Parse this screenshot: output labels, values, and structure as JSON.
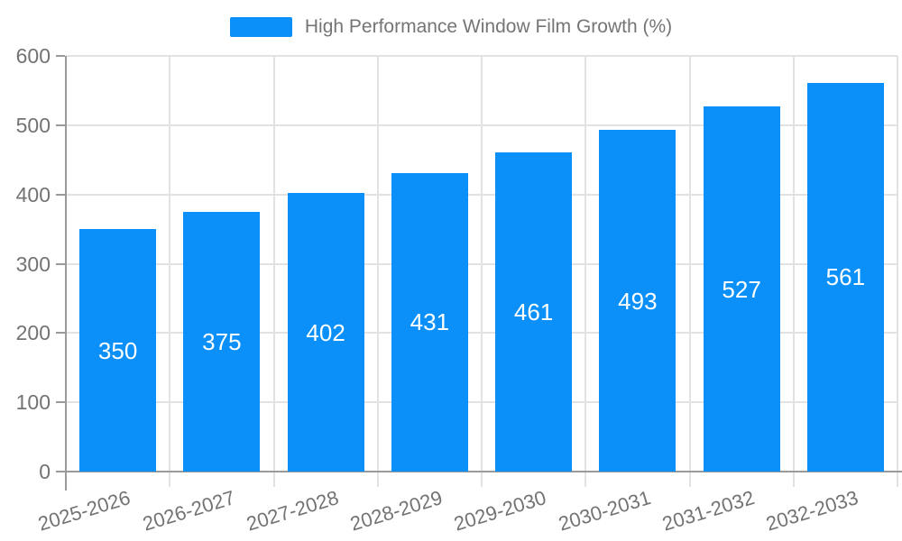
{
  "chart_data": {
    "type": "bar",
    "title": "High Performance Window Film Growth (%)",
    "categories": [
      "2025-2026",
      "2026-2027",
      "2027-2028",
      "2028-2029",
      "2029-2030",
      "2030-2031",
      "2031-2032",
      "2032-2033"
    ],
    "series": [
      {
        "name": "High Performance Window Film Growth (%)",
        "values": [
          350,
          375,
          402,
          431,
          461,
          493,
          527,
          561
        ]
      }
    ],
    "xlabel": "",
    "ylabel": "",
    "ylim": [
      0,
      600
    ],
    "yticks": [
      0,
      100,
      200,
      300,
      400,
      500,
      600
    ],
    "grid": true,
    "legend_position": "top-center",
    "value_labels_position": "inside-center",
    "x_tick_rotation_deg": -17
  },
  "style": {
    "background": "#ffffff",
    "bar_color": "#0a90f8",
    "grid_color": "#e2e2e2",
    "axis_line_color": "#9a9a9a",
    "tick_label_color": "#737373",
    "legend_text_color": "#757575",
    "value_label_color": "#ffffff"
  }
}
